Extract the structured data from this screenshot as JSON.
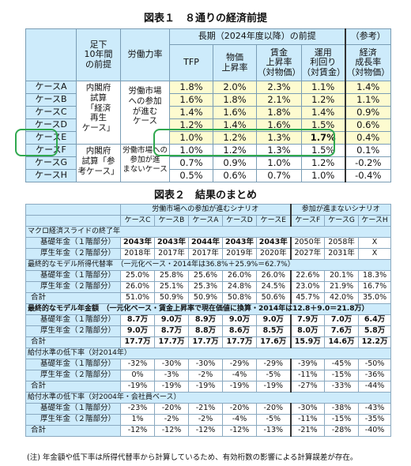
{
  "fig1": {
    "title": "図表１　８通りの経済前提",
    "hd_base": [
      "足下",
      "10年間",
      "の前提"
    ],
    "hd_labor": "労働力率",
    "hd_long": "長期（2024年度以降）の前提",
    "hd_ref": "（参考）",
    "cols": [
      {
        "l1": "TFP",
        "l2": ""
      },
      {
        "l1": "物価",
        "l2": "上昇率"
      },
      {
        "l1": "賃金",
        "l2": "上昇率",
        "l3": "（対物価）"
      },
      {
        "l1": "運用",
        "l2": "利回り",
        "l3": "（対賃金）"
      },
      {
        "l1": "経済",
        "l2": "成長率",
        "l3": "（対物価）"
      }
    ],
    "group1": [
      "内閣府",
      "試算",
      "「経済",
      "再生",
      "ケース」"
    ],
    "group2": [
      "内閣府",
      "試算「参",
      "考ケース」"
    ],
    "labor1": [
      "労働市場",
      "への参加",
      "が進む",
      "ケース"
    ],
    "labor2": [
      "労働市場への",
      "参加が進",
      "まないケース"
    ],
    "rows": [
      {
        "case": "ケースA",
        "tfp": "1.8%",
        "price": "2.0%",
        "wage": "2.3%",
        "ret": "1.1%",
        "gdp": "1.4%"
      },
      {
        "case": "ケースB",
        "tfp": "1.6%",
        "price": "1.8%",
        "wage": "2.1%",
        "ret": "1.2%",
        "gdp": "1.1%"
      },
      {
        "case": "ケースC",
        "tfp": "1.4%",
        "price": "1.6%",
        "wage": "1.8%",
        "ret": "1.4%",
        "gdp": "0.9%"
      },
      {
        "case": "ケースD",
        "tfp": "1.2%",
        "price": "1.4%",
        "wage": "1.6%",
        "ret": "1.5%",
        "gdp": "0.6%"
      },
      {
        "case": "ケースE",
        "tfp": "1.0%",
        "price": "1.2%",
        "wage": "1.3%",
        "ret": "1.7%",
        "gdp": "0.4%"
      },
      {
        "case": "ケースF",
        "tfp": "1.0%",
        "price": "1.2%",
        "wage": "1.3%",
        "ret": "1.5%",
        "gdp": "0.1%"
      },
      {
        "case": "ケースG",
        "tfp": "0.7%",
        "price": "0.9%",
        "wage": "1.0%",
        "ret": "1.2%",
        "gdp": "-0.2%"
      },
      {
        "case": "ケースH",
        "tfp": "0.5%",
        "price": "0.6%",
        "wage": "0.7%",
        "ret": "1.0%",
        "gdp": "-0.4%"
      }
    ],
    "highlight_color": "#2fa84f"
  },
  "fig2": {
    "title": "図表２　結果のまとめ",
    "scen1": "労働市場への参加が進むシナリオ",
    "scen2": "参加が進まないシナリオ",
    "cases": [
      "ケースC",
      "ケースB",
      "ケースA",
      "ケースD",
      "ケースE",
      "ケースF",
      "ケースG",
      "ケースH"
    ],
    "sec1": "マクロ経済スライドの終了年",
    "sec1_rows": [
      {
        "label": "基礎年金（１階部分）",
        "vals": [
          "2043年",
          "2043年",
          "2044年",
          "2043年",
          "2043年",
          "2050年",
          "2058年",
          "X"
        ],
        "bold": [
          true,
          true,
          true,
          true,
          true,
          false,
          false,
          false
        ]
      },
      {
        "label": "厚生年金（２階部分）",
        "vals": [
          "2018年",
          "2017年",
          "2017年",
          "2019年",
          "2020年",
          "2027年",
          "2031年",
          "X"
        ],
        "bold": [
          false,
          false,
          false,
          false,
          false,
          false,
          false,
          false
        ]
      }
    ],
    "sec2": "最終的なモデル所得代替率　（一元化ベース・2014年は36.8%＋25.9%＝62.7%）",
    "sec2_rows": [
      {
        "label": "基礎年金（１階部分）",
        "vals": [
          "25.0%",
          "25.8%",
          "25.6%",
          "26.0%",
          "26.0%",
          "22.6%",
          "20.1%",
          "18.3%"
        ],
        "kind": "lbl2"
      },
      {
        "label": "厚生年金（２階部分）",
        "vals": [
          "26.0%",
          "25.1%",
          "25.3%",
          "24.8%",
          "24.5%",
          "23.0%",
          "21.9%",
          "16.7%"
        ],
        "kind": "lbl2"
      },
      {
        "label": "合計",
        "vals": [
          "51.0%",
          "50.9%",
          "50.9%",
          "50.8%",
          "50.6%",
          "45.7%",
          "42.0%",
          "35.0%"
        ],
        "kind": "lbl"
      }
    ],
    "sec3": "最終的なモデル年金額　（一元化ベース・賃金上昇率で現在価値に換算・2014年は12.8＋9.0＝21.8万）",
    "sec3_rows": [
      {
        "label": "基礎年金（１階部分）",
        "vals": [
          "8.7万",
          "9.0万",
          "8.9万",
          "9.0万",
          "9.0万",
          "7.9万",
          "7.0万",
          "6.4万"
        ],
        "kind": "lbl2"
      },
      {
        "label": "厚生年金（２階部分）",
        "vals": [
          "9.0万",
          "8.7万",
          "8.8万",
          "8.6万",
          "8.5万",
          "8.0万",
          "7.6万",
          "5.8万"
        ],
        "kind": "lbl2"
      },
      {
        "label": "合計",
        "vals": [
          "17.7万",
          "17.7万",
          "17.7万",
          "17.7万",
          "17.6万",
          "15.9万",
          "14.6万",
          "12.2万"
        ],
        "kind": "lbl"
      }
    ],
    "sec4": "給付水準の低下率（対2014年）",
    "sec4_rows": [
      {
        "label": "基礎年金（１階部分）",
        "vals": [
          "-32%",
          "-30%",
          "-30%",
          "-29%",
          "-29%",
          "-39%",
          "-45%",
          "-50%"
        ],
        "kind": "lbl2"
      },
      {
        "label": "厚生年金（２階部分）",
        "vals": [
          "0%",
          "-3%",
          "-2%",
          "-4%",
          "-5%",
          "-11%",
          "-15%",
          "-36%"
        ],
        "kind": "lbl2"
      },
      {
        "label": "合計",
        "vals": [
          "-19%",
          "-19%",
          "-19%",
          "-19%",
          "-19%",
          "-27%",
          "-33%",
          "-44%"
        ],
        "kind": "lbl"
      }
    ],
    "sec5": "給付水準の低下率（対2004年・会社員ベース）",
    "sec5_rows": [
      {
        "label": "基礎年金（１階部分）",
        "vals": [
          "-23%",
          "-20%",
          "-21%",
          "-20%",
          "-20%",
          "-30%",
          "-38%",
          "-43%"
        ],
        "kind": "lbl2"
      },
      {
        "label": "厚生年金（２階部分）",
        "vals": [
          "1%",
          "-2%",
          "-2%",
          "-4%",
          "-5%",
          "-11%",
          "-15%",
          "-35%"
        ],
        "kind": "lbl2"
      },
      {
        "label": "合計",
        "vals": [
          "-12%",
          "-12%",
          "-12%",
          "-12%",
          "-13%",
          "-21%",
          "-28%",
          "-40%"
        ],
        "kind": "lbl"
      }
    ]
  },
  "note": "(注) 年金額や低下率は所得代替率から計算しているため、有効桁数の影響による計算誤差が存在。"
}
